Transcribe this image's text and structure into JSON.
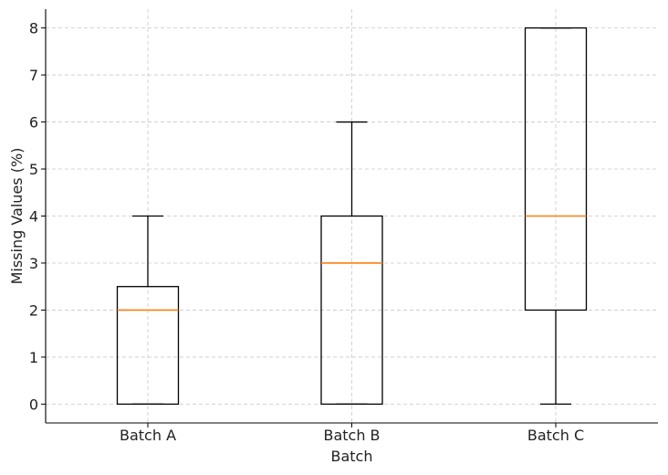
{
  "chart_data": {
    "type": "box",
    "title": "",
    "xlabel": "Batch",
    "ylabel": "Missing Values (%)",
    "categories": [
      "Batch A",
      "Batch B",
      "Batch C"
    ],
    "boxes": [
      {
        "category": "Batch A",
        "whisker_low": 0,
        "q1": 0,
        "median": 2,
        "q3": 2.5,
        "whisker_high": 4
      },
      {
        "category": "Batch B",
        "whisker_low": 0,
        "q1": 0,
        "median": 3,
        "q3": 4,
        "whisker_high": 6
      },
      {
        "category": "Batch C",
        "whisker_low": 0,
        "q1": 2,
        "median": 4,
        "q3": 8,
        "whisker_high": 8
      }
    ],
    "yticks": [
      "0",
      "1",
      "2",
      "3",
      "4",
      "5",
      "6",
      "7",
      "8"
    ],
    "ylim": [
      -0.4,
      8.4
    ],
    "grid": true,
    "colors": {
      "box": "#000000",
      "median": "#ff7f0e",
      "grid": "#c8c8c8",
      "axis": "#000000"
    }
  }
}
